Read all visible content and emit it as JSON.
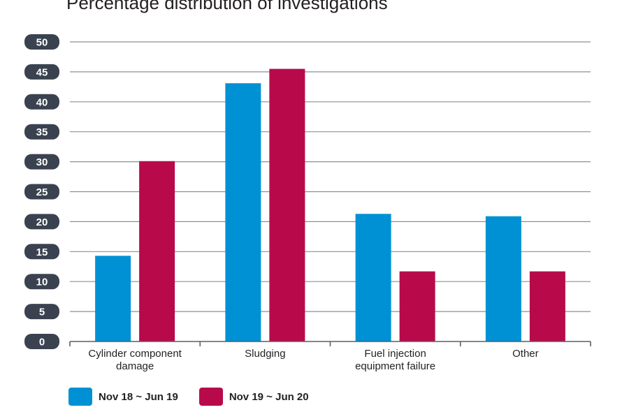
{
  "chart_data": {
    "type": "bar",
    "title": "Percentage distribution of investigations",
    "categories": [
      [
        "Cylinder component",
        "damage"
      ],
      [
        "Sludging"
      ],
      [
        "Fuel injection",
        "equipment failure"
      ],
      [
        "Other"
      ]
    ],
    "series": [
      {
        "name": "Nov 18 ~ Jun 19",
        "color": "#0091d4",
        "values": [
          14.3,
          43.1,
          21.3,
          20.9
        ]
      },
      {
        "name": "Nov 19 ~ Jun 20",
        "color": "#b80a4a",
        "values": [
          30.1,
          45.5,
          11.7,
          11.7
        ]
      }
    ],
    "yticks": [
      "0",
      "5",
      "10",
      "15",
      "20",
      "25",
      "30",
      "35",
      "40",
      "45",
      "50"
    ],
    "ylim": [
      0,
      50
    ],
    "grid": true,
    "legend_position": "bottom-left"
  },
  "colors": {
    "tick_badge": "#3a4250",
    "grid": "#8a8f98",
    "axis": "#5a5f66"
  }
}
